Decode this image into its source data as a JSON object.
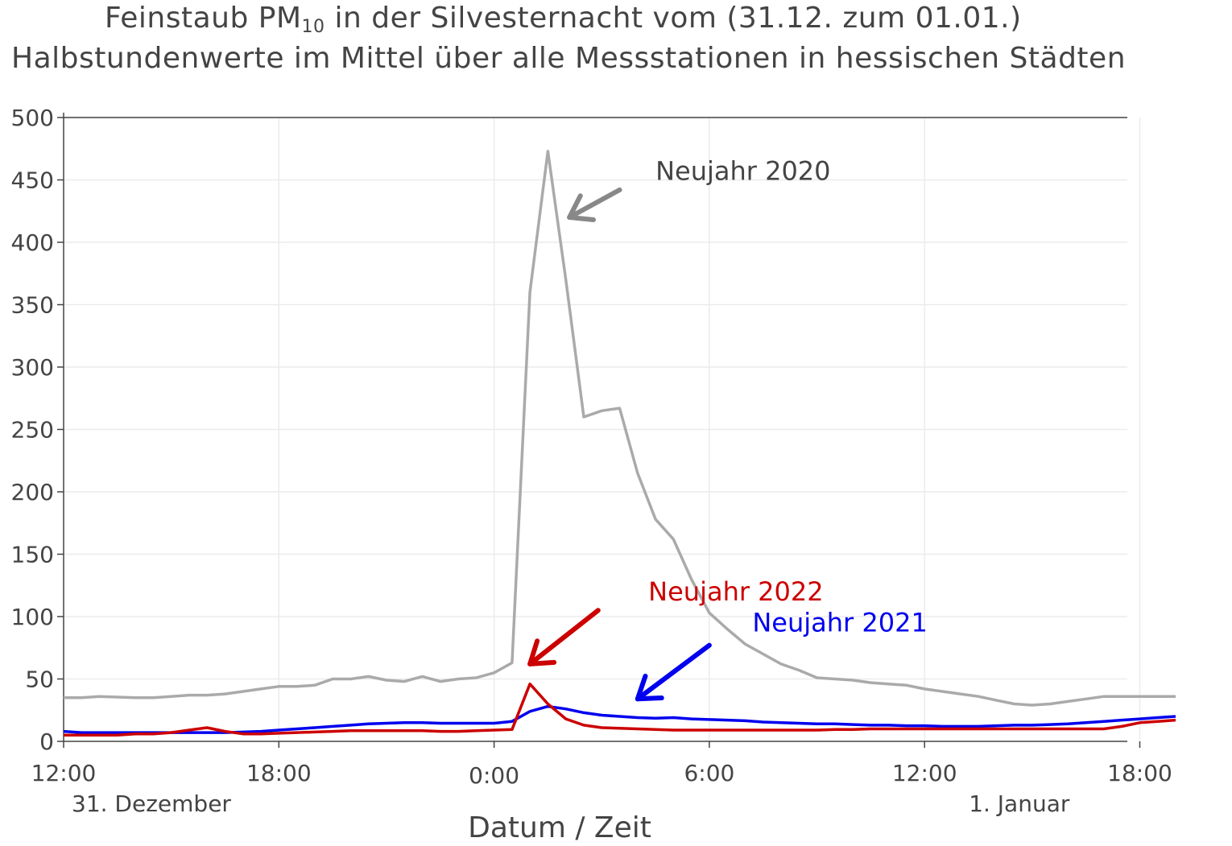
{
  "title": {
    "line1_prefix": "Feinstaub PM",
    "line1_sub": "10",
    "line1_suffix": " in der Silvesternacht vom (31.12. zum 01.01.)",
    "line2": "Halbstundenwerte im Mittel über alle Messstationen in hessischen Städten"
  },
  "chart_data": {
    "type": "line",
    "xlabel": "Datum / Zeit",
    "ylim": [
      0,
      500
    ],
    "y_ticks": [
      0,
      50,
      100,
      150,
      200,
      250,
      300,
      350,
      400,
      450,
      500
    ],
    "x_unit": "hours since 31.12. 00:00",
    "xlim": [
      12,
      43
    ],
    "x_ticks": [
      {
        "x": 12,
        "label": "12:00"
      },
      {
        "x": 18,
        "label": "18:00"
      },
      {
        "x": 24,
        "label": "0:00"
      },
      {
        "x": 30,
        "label": "6:00"
      },
      {
        "x": 36,
        "label": "12:00"
      },
      {
        "x": 42,
        "label": "18:00"
      }
    ],
    "date_labels": [
      {
        "x": 12,
        "label": "31. Dezember"
      },
      {
        "x": 36,
        "label": "1. Januar"
      }
    ],
    "grid": true,
    "series": [
      {
        "name": "Neujahr 2020",
        "color": "#aaaaaa",
        "points": [
          [
            12,
            35
          ],
          [
            12.5,
            35
          ],
          [
            13,
            36
          ],
          [
            13.5,
            35.5
          ],
          [
            14,
            35
          ],
          [
            14.5,
            35
          ],
          [
            15,
            36
          ],
          [
            15.5,
            37
          ],
          [
            16,
            37
          ],
          [
            16.5,
            38
          ],
          [
            17,
            40
          ],
          [
            17.5,
            42
          ],
          [
            18,
            44
          ],
          [
            18.5,
            44
          ],
          [
            19,
            45
          ],
          [
            19.5,
            50
          ],
          [
            20,
            50
          ],
          [
            20.5,
            52
          ],
          [
            21,
            49
          ],
          [
            21.5,
            48
          ],
          [
            22,
            52
          ],
          [
            22.5,
            48
          ],
          [
            23,
            50
          ],
          [
            23.5,
            51
          ],
          [
            24,
            55
          ],
          [
            24.5,
            63
          ],
          [
            25,
            360
          ],
          [
            25.5,
            473
          ],
          [
            26,
            370
          ],
          [
            26.5,
            260
          ],
          [
            27,
            265
          ],
          [
            27.5,
            267
          ],
          [
            28,
            215
          ],
          [
            28.5,
            178
          ],
          [
            29,
            162
          ],
          [
            29.5,
            130
          ],
          [
            30,
            103
          ],
          [
            30.5,
            90
          ],
          [
            31,
            78
          ],
          [
            31.5,
            70
          ],
          [
            32,
            62
          ],
          [
            32.5,
            57
          ],
          [
            33,
            51
          ],
          [
            33.5,
            50
          ],
          [
            34,
            49
          ],
          [
            34.5,
            47
          ],
          [
            35,
            46
          ],
          [
            35.5,
            45
          ],
          [
            36,
            42
          ],
          [
            36.5,
            40
          ],
          [
            37,
            38
          ],
          [
            37.5,
            36
          ],
          [
            38,
            33
          ],
          [
            38.5,
            30
          ],
          [
            39,
            29
          ],
          [
            39.5,
            30
          ],
          [
            40,
            32
          ],
          [
            40.5,
            34
          ],
          [
            41,
            36
          ],
          [
            41.5,
            36
          ],
          [
            42,
            36
          ],
          [
            42.5,
            36
          ],
          [
            43,
            36
          ]
        ]
      },
      {
        "name": "Neujahr 2021",
        "color": "#0000ee",
        "points": [
          [
            12,
            8
          ],
          [
            12.5,
            7
          ],
          [
            13,
            7
          ],
          [
            13.5,
            7
          ],
          [
            14,
            7
          ],
          [
            14.5,
            7
          ],
          [
            15,
            7
          ],
          [
            15.5,
            7
          ],
          [
            16,
            7
          ],
          [
            16.5,
            7
          ],
          [
            17,
            7.5
          ],
          [
            17.5,
            8
          ],
          [
            18,
            9
          ],
          [
            18.5,
            10
          ],
          [
            19,
            11
          ],
          [
            19.5,
            12
          ],
          [
            20,
            13
          ],
          [
            20.5,
            14
          ],
          [
            21,
            14.5
          ],
          [
            21.5,
            15
          ],
          [
            22,
            15
          ],
          [
            22.5,
            14.5
          ],
          [
            23,
            14.5
          ],
          [
            23.5,
            14.5
          ],
          [
            24,
            14.5
          ],
          [
            24.5,
            16
          ],
          [
            25,
            24
          ],
          [
            25.5,
            28
          ],
          [
            26,
            26
          ],
          [
            26.5,
            23
          ],
          [
            27,
            21
          ],
          [
            27.5,
            20
          ],
          [
            28,
            19
          ],
          [
            28.5,
            18.5
          ],
          [
            29,
            19
          ],
          [
            29.5,
            18
          ],
          [
            30,
            17.5
          ],
          [
            30.5,
            17
          ],
          [
            31,
            16.5
          ],
          [
            31.5,
            15.5
          ],
          [
            32,
            15
          ],
          [
            32.5,
            14.5
          ],
          [
            33,
            14
          ],
          [
            33.5,
            14
          ],
          [
            34,
            13.5
          ],
          [
            34.5,
            13
          ],
          [
            35,
            13
          ],
          [
            35.5,
            12.5
          ],
          [
            36,
            12.5
          ],
          [
            36.5,
            12
          ],
          [
            37,
            12
          ],
          [
            37.5,
            12
          ],
          [
            38,
            12.5
          ],
          [
            38.5,
            13
          ],
          [
            39,
            13
          ],
          [
            39.5,
            13.5
          ],
          [
            40,
            14
          ],
          [
            40.5,
            15
          ],
          [
            41,
            16
          ],
          [
            41.5,
            17
          ],
          [
            42,
            18
          ],
          [
            42.5,
            19
          ],
          [
            43,
            20
          ]
        ]
      },
      {
        "name": "Neujahr 2022",
        "color": "#cc0000",
        "points": [
          [
            12,
            5
          ],
          [
            12.5,
            5
          ],
          [
            13,
            5
          ],
          [
            13.5,
            5
          ],
          [
            14,
            6
          ],
          [
            14.5,
            6
          ],
          [
            15,
            7
          ],
          [
            15.5,
            9
          ],
          [
            16,
            11
          ],
          [
            16.5,
            8
          ],
          [
            17,
            6
          ],
          [
            17.5,
            6
          ],
          [
            18,
            6.5
          ],
          [
            18.5,
            7
          ],
          [
            19,
            7.5
          ],
          [
            19.5,
            8
          ],
          [
            20,
            8.5
          ],
          [
            20.5,
            8.5
          ],
          [
            21,
            8.5
          ],
          [
            21.5,
            8.5
          ],
          [
            22,
            8.5
          ],
          [
            22.5,
            8
          ],
          [
            23,
            8
          ],
          [
            23.5,
            8.5
          ],
          [
            24,
            9
          ],
          [
            24.5,
            9.5
          ],
          [
            25,
            46
          ],
          [
            25.5,
            30
          ],
          [
            26,
            18
          ],
          [
            26.5,
            13
          ],
          [
            27,
            11
          ],
          [
            27.5,
            10.5
          ],
          [
            28,
            10
          ],
          [
            28.5,
            9.5
          ],
          [
            29,
            9
          ],
          [
            29.5,
            9
          ],
          [
            30,
            9
          ],
          [
            30.5,
            9
          ],
          [
            31,
            9
          ],
          [
            31.5,
            9
          ],
          [
            32,
            9
          ],
          [
            32.5,
            9
          ],
          [
            33,
            9
          ],
          [
            33.5,
            9.5
          ],
          [
            34,
            9.5
          ],
          [
            34.5,
            10
          ],
          [
            35,
            10
          ],
          [
            35.5,
            10
          ],
          [
            36,
            10
          ],
          [
            36.5,
            10
          ],
          [
            37,
            10
          ],
          [
            37.5,
            10
          ],
          [
            38,
            10
          ],
          [
            38.5,
            10
          ],
          [
            39,
            10
          ],
          [
            39.5,
            10
          ],
          [
            40,
            10
          ],
          [
            40.5,
            10
          ],
          [
            41,
            10
          ],
          [
            41.5,
            12
          ],
          [
            42,
            15
          ],
          [
            42.5,
            16
          ],
          [
            43,
            17
          ]
        ]
      }
    ],
    "annotations": [
      {
        "text": "Neujahr 2020",
        "color": "#444444",
        "arrow_color": "#888888",
        "text_x": 28.5,
        "text_y": 450,
        "arrow_from": [
          27.5,
          442
        ],
        "arrow_to": [
          26.1,
          420
        ]
      },
      {
        "text": "Neujahr 2022",
        "color": "#cc0000",
        "arrow_color": "#cc0000",
        "text_x": 28.3,
        "text_y": 113,
        "arrow_from": [
          26.9,
          105
        ],
        "arrow_to": [
          25.0,
          62
        ]
      },
      {
        "text": "Neujahr 2021",
        "color": "#0000ee",
        "arrow_color": "#0000ee",
        "text_x": 31.2,
        "text_y": 88,
        "arrow_from": [
          30.0,
          77
        ],
        "arrow_to": [
          28.0,
          34
        ]
      }
    ]
  }
}
